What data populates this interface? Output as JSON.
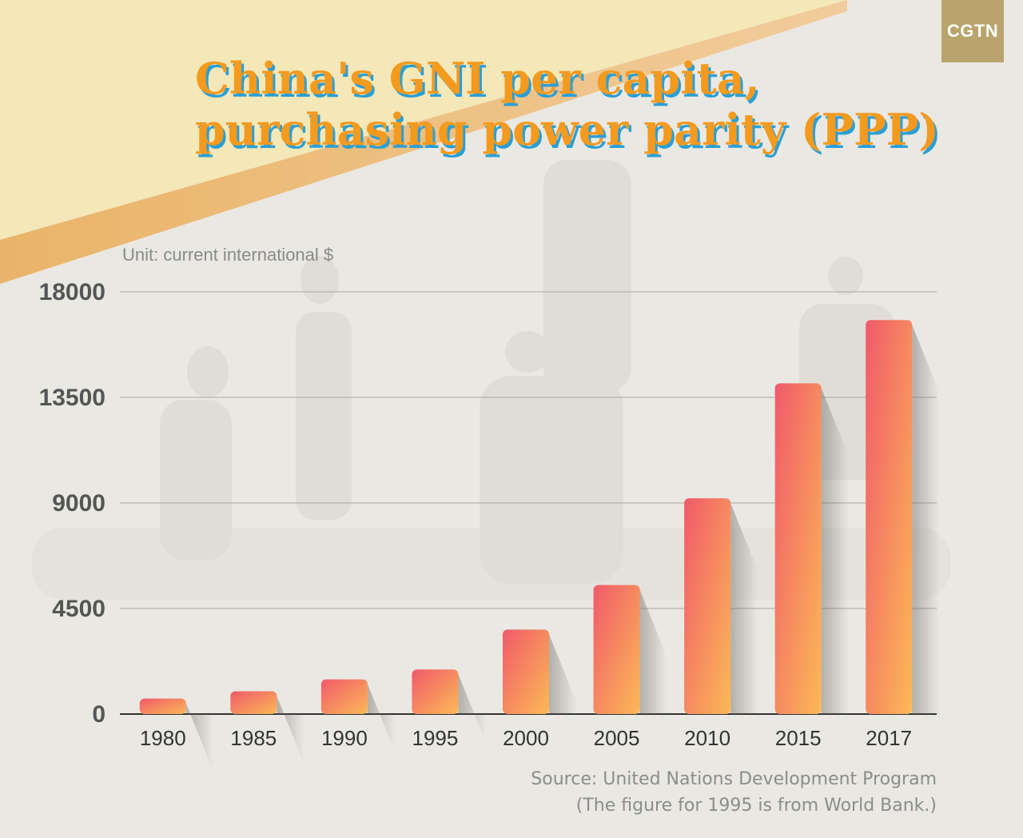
{
  "brand": {
    "logo_text": "CGTN",
    "logo_color": "#b8a46c"
  },
  "title_lines": [
    "China's GNI per capita,",
    "purchasing power parity (PPP)"
  ],
  "unit_label": "Unit: current international $",
  "source_lines": [
    "Source: United Nations Development Program",
    "(The figure for 1995 is from World Bank.)"
  ],
  "colors": {
    "title": "#f39a1f",
    "title_shadow": "#2a9fd6",
    "bar_start": "#f05a6a",
    "bar_end": "#fbb957",
    "axis_text": "#555555"
  },
  "chart_data": {
    "type": "bar",
    "title": "China's GNI per capita, purchasing power parity (PPP)",
    "xlabel": "",
    "ylabel": "Unit: current international $",
    "categories": [
      "1980",
      "1985",
      "1990",
      "1995",
      "2000",
      "2005",
      "2010",
      "2015",
      "2017"
    ],
    "values": [
      660,
      970,
      1480,
      1900,
      3600,
      5500,
      9200,
      14100,
      16800
    ],
    "ylim": [
      0,
      18000
    ],
    "yticks": [
      "0",
      "4500",
      "9000",
      "13500",
      "18000"
    ],
    "grid": true,
    "legend": "none"
  }
}
